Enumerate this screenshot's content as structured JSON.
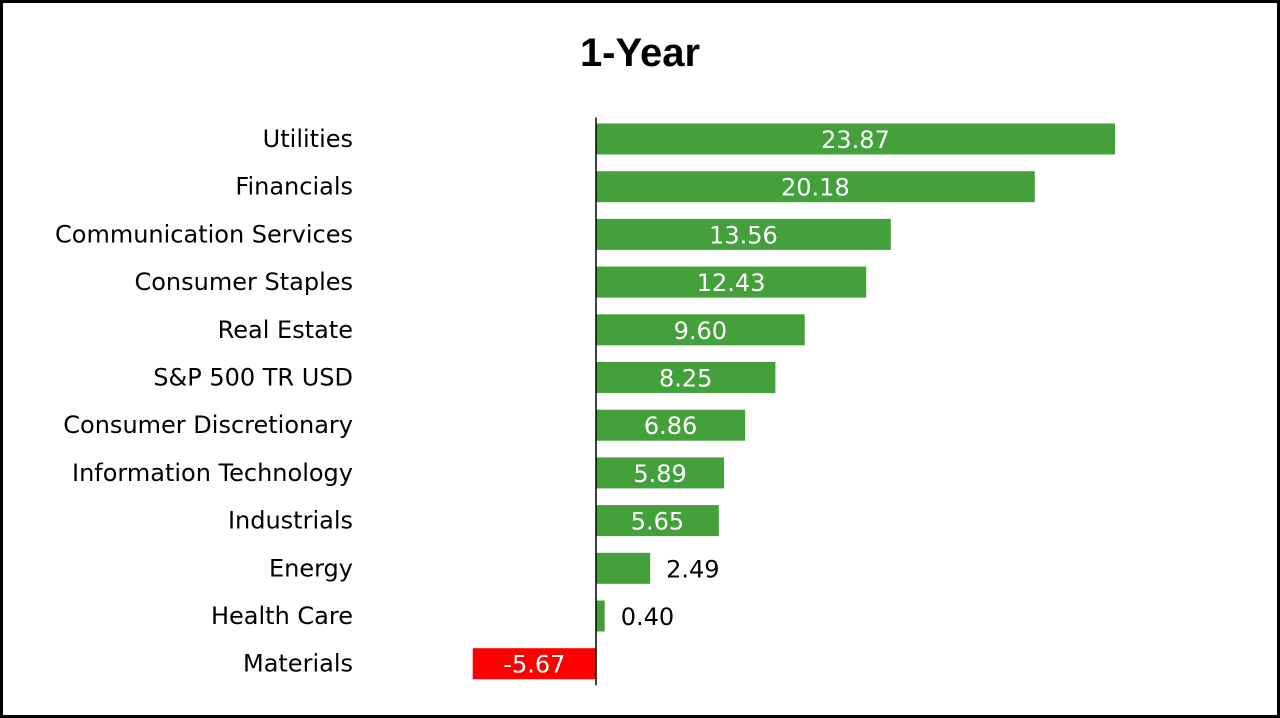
{
  "chart_data": {
    "type": "bar",
    "orientation": "horizontal",
    "title": "1-Year",
    "categories": [
      "Utilities",
      "Financials",
      "Communication Services",
      "Consumer Staples",
      "Real Estate",
      "S&P 500 TR USD",
      "Consumer Discretionary",
      "Information Technology",
      "Industrials",
      "Energy",
      "Health Care",
      "Materials"
    ],
    "values": [
      23.87,
      20.18,
      13.56,
      12.43,
      9.6,
      8.25,
      6.86,
      5.89,
      5.65,
      2.49,
      0.4,
      -5.67
    ],
    "value_labels": [
      "23.87",
      "20.18",
      "13.56",
      "12.43",
      "9.60",
      "8.25",
      "6.86",
      "5.89",
      "5.65",
      "2.49",
      "0.40",
      "-5.67"
    ],
    "xlim": [
      -5.67,
      23.87
    ],
    "grid": false,
    "colors": {
      "positive": "#43a03a",
      "negative": "#ff0000",
      "label_inside": "#ffffff",
      "label_outside": "#000000"
    }
  }
}
